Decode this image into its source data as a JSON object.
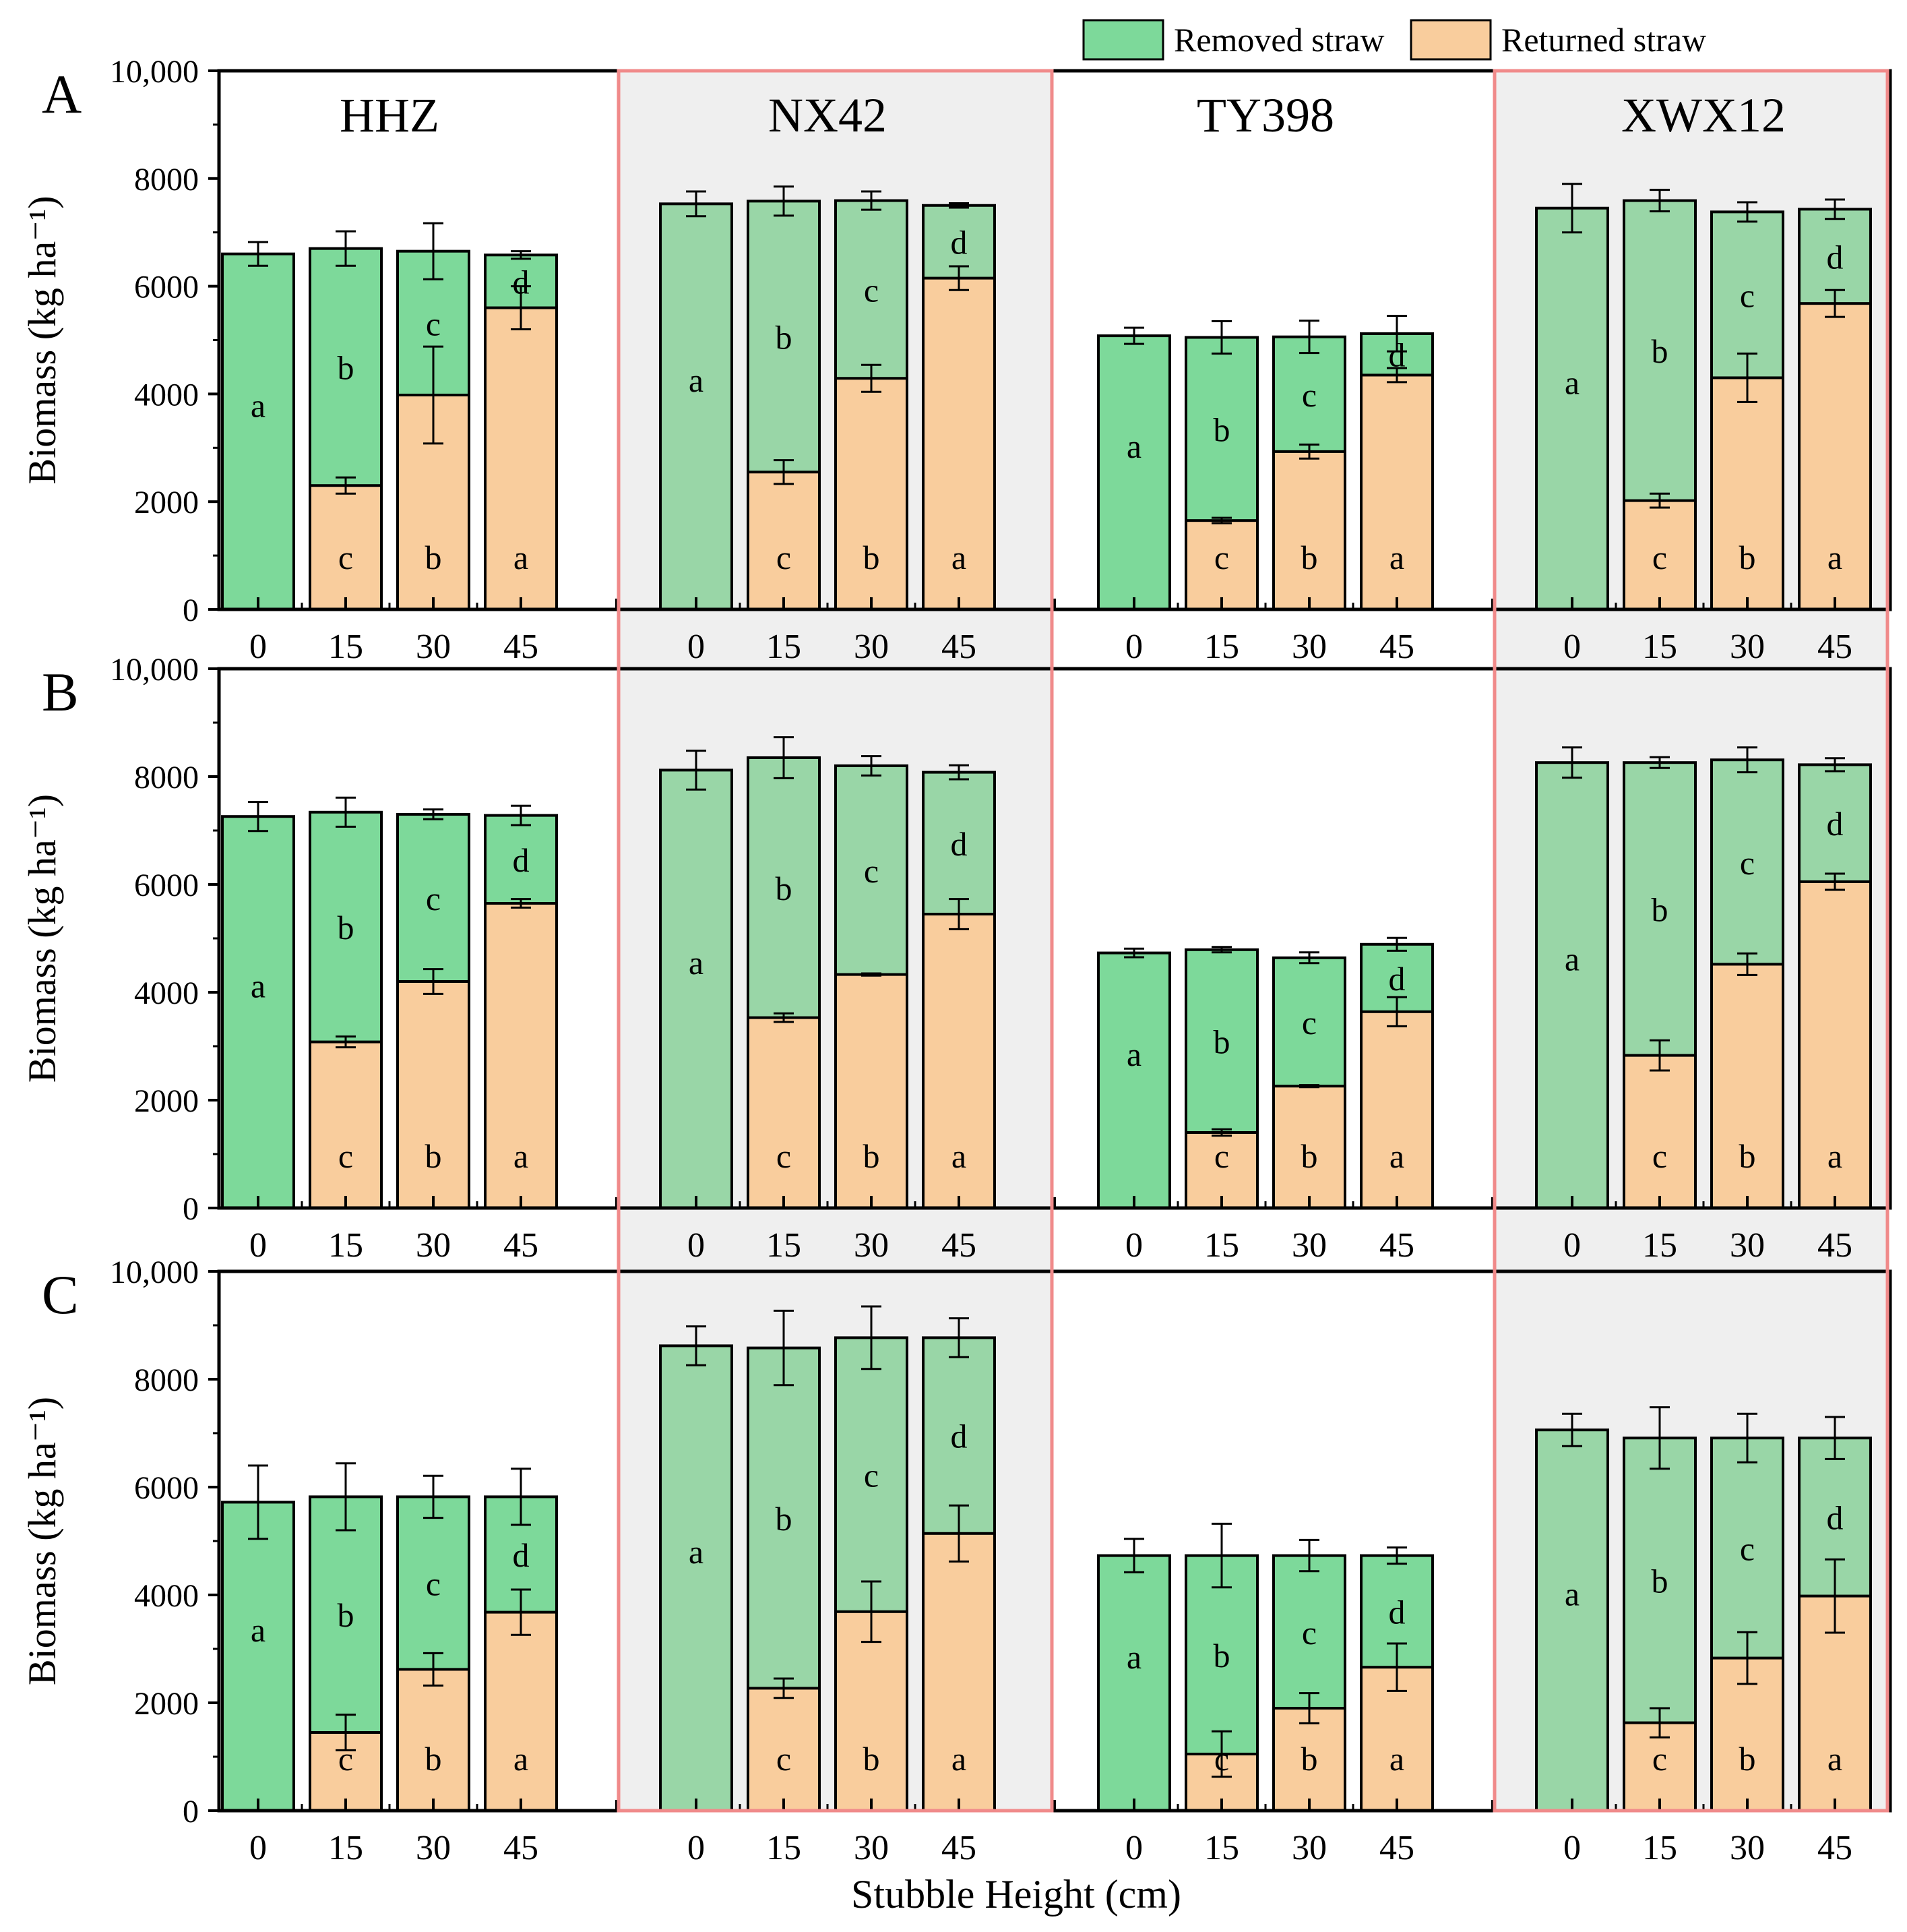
{
  "legend": {
    "removed_label": "Removed straw",
    "returned_label": "Returned straw"
  },
  "colors": {
    "removed": "#7dd99a",
    "removed_shaded": "#99d6a7",
    "returned": "#f9cd9d",
    "letter_green": "#1a8a1a",
    "letter_orange": "#c86414",
    "highlight_border": "#f08a8a",
    "highlight_fill": "#efefef"
  },
  "chart_data": {
    "type": "stacked-bar",
    "xlabel": "Stubble Height (cm)",
    "ylabel": "Biomass (kg ha⁻¹)",
    "ylim": [
      0,
      10000
    ],
    "y_ticks": [
      "0",
      "2000",
      "4000",
      "6000",
      "8000",
      "10,000"
    ],
    "categories": [
      "0",
      "15",
      "30",
      "45"
    ],
    "cultivars": [
      "HHZ",
      "NX42",
      "TY398",
      "XWX12"
    ],
    "highlighted_cultivars": [
      "NX42",
      "XWX12"
    ],
    "green_letters": [
      "a",
      "b",
      "c",
      "d"
    ],
    "orange_letters": [
      "c",
      "b",
      "a"
    ],
    "panels": [
      {
        "label": "A",
        "groups": [
          {
            "cultivar": "HHZ",
            "total": [
              6600,
              6700,
              6650,
              6580
            ],
            "total_err": [
              220,
              320,
              520,
              70
            ],
            "returned": [
              0,
              2300,
              3980,
              5600
            ],
            "returned_err": [
              0,
              150,
              900,
              400
            ]
          },
          {
            "cultivar": "NX42",
            "total": [
              7530,
              7580,
              7590,
              7500
            ],
            "total_err": [
              230,
              270,
              170,
              40
            ],
            "returned": [
              0,
              2550,
              4290,
              6150
            ],
            "returned_err": [
              0,
              220,
              250,
              220
            ]
          },
          {
            "cultivar": "TY398",
            "total": [
              5080,
              5050,
              5060,
              5120
            ],
            "total_err": [
              150,
              300,
              300,
              330
            ],
            "returned": [
              0,
              1650,
              2930,
              4350
            ],
            "returned_err": [
              0,
              50,
              130,
              130
            ]
          },
          {
            "cultivar": "XWX12",
            "total": [
              7450,
              7590,
              7380,
              7430
            ],
            "total_err": [
              450,
              200,
              180,
              180
            ],
            "returned": [
              0,
              2020,
              4300,
              5680
            ],
            "returned_err": [
              0,
              130,
              450,
              250
            ]
          }
        ]
      },
      {
        "label": "B",
        "groups": [
          {
            "cultivar": "HHZ",
            "total": [
              7260,
              7340,
              7300,
              7280
            ],
            "total_err": [
              270,
              270,
              90,
              180
            ],
            "returned": [
              0,
              3080,
              4200,
              5650
            ],
            "returned_err": [
              0,
              100,
              230,
              80
            ]
          },
          {
            "cultivar": "NX42",
            "total": [
              8120,
              8350,
              8200,
              8080
            ],
            "total_err": [
              360,
              380,
              180,
              130
            ],
            "returned": [
              0,
              3530,
              4330,
              5450
            ],
            "returned_err": [
              0,
              80,
              20,
              280
            ]
          },
          {
            "cultivar": "TY398",
            "total": [
              4730,
              4790,
              4640,
              4890
            ],
            "total_err": [
              80,
              50,
              100,
              120
            ],
            "returned": [
              0,
              1400,
              2260,
              3640
            ],
            "returned_err": [
              0,
              60,
              20,
              270
            ]
          },
          {
            "cultivar": "XWX12",
            "total": [
              8260,
              8260,
              8310,
              8220
            ],
            "total_err": [
              280,
              100,
              230,
              120
            ],
            "returned": [
              0,
              2830,
              4520,
              6050
            ],
            "returned_err": [
              0,
              280,
              200,
              150
            ]
          }
        ]
      },
      {
        "label": "C",
        "groups": [
          {
            "cultivar": "HHZ",
            "total": [
              5720,
              5820,
              5820,
              5820
            ],
            "total_err": [
              680,
              620,
              390,
              520
            ],
            "returned": [
              0,
              1450,
              2620,
              3680
            ],
            "returned_err": [
              0,
              330,
              300,
              420
            ]
          },
          {
            "cultivar": "NX42",
            "total": [
              8620,
              8580,
              8770,
              8770
            ],
            "total_err": [
              360,
              690,
              580,
              360
            ],
            "returned": [
              0,
              2270,
              3690,
              5140
            ],
            "returned_err": [
              0,
              180,
              560,
              520
            ]
          },
          {
            "cultivar": "TY398",
            "total": [
              4730,
              4730,
              4730,
              4730
            ],
            "total_err": [
              310,
              590,
              290,
              150
            ],
            "returned": [
              0,
              1050,
              1900,
              2660
            ],
            "returned_err": [
              0,
              420,
              280,
              440
            ]
          },
          {
            "cultivar": "XWX12",
            "total": [
              7060,
              6910,
              6910,
              6910
            ],
            "total_err": [
              300,
              570,
              450,
              390
            ],
            "returned": [
              0,
              1630,
              2830,
              3980
            ],
            "returned_err": [
              0,
              270,
              480,
              680
            ]
          }
        ]
      }
    ]
  }
}
